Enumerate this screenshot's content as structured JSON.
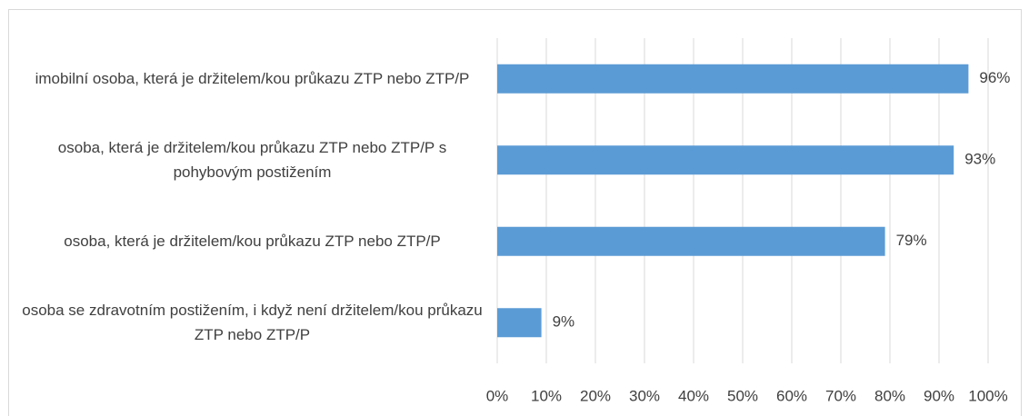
{
  "chart_data": {
    "type": "bar",
    "orientation": "horizontal",
    "categories": [
      "imobilní osoba, která je držitelem/kou průkazu ZTP nebo ZTP/P",
      "osoba, která je držitelem/kou průkazu ZTP nebo ZTP/P s pohybovým postižením",
      "osoba, která je držitelem/kou průkazu ZTP nebo ZTP/P",
      "osoba se zdravotním postižením, i když není držitelem/kou průkazu ZTP nebo ZTP/P"
    ],
    "values": [
      96,
      93,
      79,
      9
    ],
    "value_labels": [
      "96%",
      "93%",
      "79%",
      "9%"
    ],
    "color": "#5b9bd5",
    "xlim": [
      0,
      100
    ],
    "xticks": [
      {
        "value": 0,
        "label": "0%"
      },
      {
        "value": 10,
        "label": "10%"
      },
      {
        "value": 20,
        "label": "20%"
      },
      {
        "value": 30,
        "label": "30%"
      },
      {
        "value": 40,
        "label": "40%"
      },
      {
        "value": 50,
        "label": "50%"
      },
      {
        "value": 60,
        "label": "60%"
      },
      {
        "value": 70,
        "label": "70%"
      },
      {
        "value": 80,
        "label": "80%"
      },
      {
        "value": 90,
        "label": "90%"
      },
      {
        "value": 100,
        "label": "100%"
      }
    ],
    "grid": true
  }
}
